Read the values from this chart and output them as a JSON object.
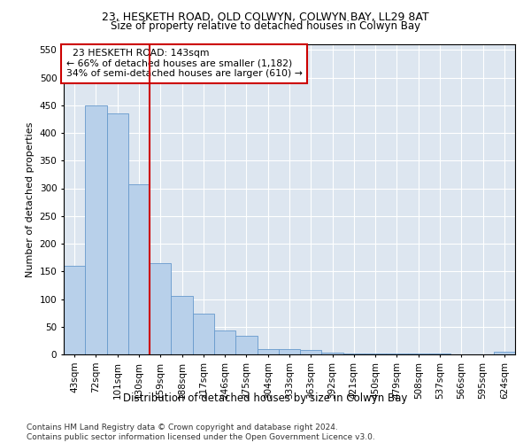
{
  "title": "23, HESKETH ROAD, OLD COLWYN, COLWYN BAY, LL29 8AT",
  "subtitle": "Size of property relative to detached houses in Colwyn Bay",
  "xlabel": "Distribution of detached houses by size in Colwyn Bay",
  "ylabel": "Number of detached properties",
  "bar_labels": [
    "43sqm",
    "72sqm",
    "101sqm",
    "130sqm",
    "159sqm",
    "188sqm",
    "217sqm",
    "246sqm",
    "275sqm",
    "304sqm",
    "333sqm",
    "363sqm",
    "392sqm",
    "421sqm",
    "450sqm",
    "479sqm",
    "508sqm",
    "537sqm",
    "566sqm",
    "595sqm",
    "624sqm"
  ],
  "bar_values": [
    160,
    450,
    435,
    307,
    165,
    105,
    73,
    44,
    33,
    10,
    9,
    8,
    4,
    2,
    2,
    1,
    1,
    1,
    0,
    0,
    5
  ],
  "bar_color": "#b8d0ea",
  "bar_edge_color": "#6699cc",
  "vline_x_index": 3.5,
  "vline_color": "#cc0000",
  "annotation_text": "  23 HESKETH ROAD: 143sqm  \n← 66% of detached houses are smaller (1,182)\n34% of semi-detached houses are larger (610) →",
  "annotation_box_color": "#cc0000",
  "ylim": [
    0,
    560
  ],
  "yticks": [
    0,
    50,
    100,
    150,
    200,
    250,
    300,
    350,
    400,
    450,
    500,
    550
  ],
  "plot_bg_color": "#dde6f0",
  "footer": "Contains HM Land Registry data © Crown copyright and database right 2024.\nContains public sector information licensed under the Open Government Licence v3.0.",
  "title_fontsize": 9,
  "subtitle_fontsize": 8.5,
  "xlabel_fontsize": 8.5,
  "ylabel_fontsize": 8,
  "tick_fontsize": 7.5,
  "footer_fontsize": 6.5
}
